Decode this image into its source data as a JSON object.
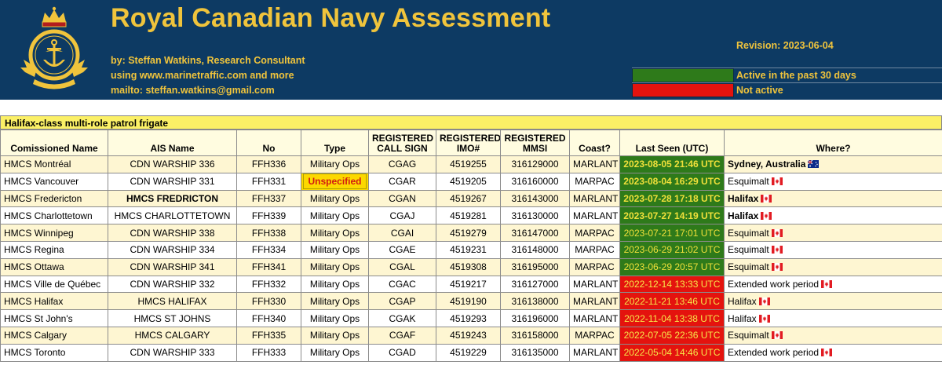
{
  "header": {
    "title": "Royal Canadian Navy Assessment",
    "byline": "by: Steffan Watkins, Research Consultant",
    "source": "using www.marinetraffic.com and more",
    "mailto": "mailto: steffan.watkins@gmail.com",
    "revision": "Revision: 2023-06-04",
    "legend": [
      {
        "color": "#2e7a1a",
        "label": "Active in the past 30 days"
      },
      {
        "color": "#e4130e",
        "label": "Not active"
      }
    ]
  },
  "section": {
    "title": "Halifax-class multi-role patrol frigate",
    "columns": [
      [
        "Comissioned Name"
      ],
      [
        "AIS Name"
      ],
      [
        "No"
      ],
      [
        "Type"
      ],
      [
        "REGISTERED",
        "CALL SIGN"
      ],
      [
        "REGISTERED",
        "IMO#"
      ],
      [
        "REGISTERED",
        "MMSI"
      ],
      [
        "Coast?"
      ],
      [
        "Last Seen (UTC)"
      ],
      [
        "Where?"
      ]
    ],
    "rows": [
      {
        "name": "HMCS Montréal",
        "ais": "CDN WARSHIP 336",
        "no": "FFH336",
        "type": "Military Ops",
        "call": "CGAG",
        "imo": "4519255",
        "mmsi": "316129000",
        "coast": "MARLANT",
        "seen": "2023-08-05 21:46 UTC",
        "status": "active",
        "where": "Sydney, Australia",
        "flag": "au-flag",
        "where_bold": true,
        "seen_bold": true
      },
      {
        "name": "HMCS Vancouver",
        "ais": "CDN WARSHIP 331",
        "no": "FFH331",
        "type": "Unspecified",
        "call": "CGAR",
        "imo": "4519205",
        "mmsi": "316160000",
        "coast": "MARPAC",
        "seen": "2023-08-04 16:29 UTC",
        "status": "active",
        "where": "Esquimalt",
        "flag": "ca-flag",
        "seen_bold": true
      },
      {
        "name": "HMCS Fredericton",
        "ais": "HMCS FREDRICTON",
        "no": "FFH337",
        "type": "Military Ops",
        "call": "CGAN",
        "imo": "4519267",
        "mmsi": "316143000",
        "coast": "MARLANT",
        "seen": "2023-07-28 17:18 UTC",
        "status": "active",
        "where": "Halifax",
        "flag": "ca-flag",
        "where_bold": true,
        "ais_bold": true,
        "seen_bold": true
      },
      {
        "name": "HMCS Charlottetown",
        "ais": "HMCS CHARLOTTETOWN",
        "no": "FFH339",
        "type": "Military Ops",
        "call": "CGAJ",
        "imo": "4519281",
        "mmsi": "316130000",
        "coast": "MARLANT",
        "seen": "2023-07-27 14:19 UTC",
        "status": "active",
        "where": "Halifax",
        "flag": "ca-flag",
        "where_bold": true,
        "seen_bold": true
      },
      {
        "name": "HMCS Winnipeg",
        "ais": "CDN WARSHIP 338",
        "no": "FFH338",
        "type": "Military Ops",
        "call": "CGAI",
        "imo": "4519279",
        "mmsi": "316147000",
        "coast": "MARPAC",
        "seen": "2023-07-21 17:01 UTC",
        "status": "active",
        "where": "Esquimalt",
        "flag": "ca-flag"
      },
      {
        "name": "HMCS Regina",
        "ais": "CDN WARSHIP 334",
        "no": "FFH334",
        "type": "Military Ops",
        "call": "CGAE",
        "imo": "4519231",
        "mmsi": "316148000",
        "coast": "MARPAC",
        "seen": "2023-06-29 21:02 UTC",
        "status": "active",
        "where": "Esquimalt",
        "flag": "ca-flag"
      },
      {
        "name": "HMCS Ottawa",
        "ais": "CDN WARSHIP 341",
        "no": "FFH341",
        "type": "Military Ops",
        "call": "CGAL",
        "imo": "4519308",
        "mmsi": "316195000",
        "coast": "MARPAC",
        "seen": "2023-06-29 20:57 UTC",
        "status": "active",
        "where": "Esquimalt",
        "flag": "ca-flag"
      },
      {
        "name": "HMCS Ville de Québec",
        "ais": "CDN WARSHIP 332",
        "no": "FFH332",
        "type": "Military Ops",
        "call": "CGAC",
        "imo": "4519217",
        "mmsi": "316127000",
        "coast": "MARLANT",
        "seen": "2022-12-14 13:33 UTC",
        "status": "inactive",
        "where": "Extended work period",
        "flag": "ca-flag"
      },
      {
        "name": "HMCS Halifax",
        "ais": "HMCS HALIFAX",
        "no": "FFH330",
        "type": "Military Ops",
        "call": "CGAP",
        "imo": "4519190",
        "mmsi": "316138000",
        "coast": "MARLANT",
        "seen": "2022-11-21 13:46 UTC",
        "status": "inactive",
        "where": "Halifax",
        "flag": "ca-flag"
      },
      {
        "name": "HMCS St John's",
        "ais": "HMCS ST JOHNS",
        "no": "FFH340",
        "type": "Military Ops",
        "call": "CGAK",
        "imo": "4519293",
        "mmsi": "316196000",
        "coast": "MARLANT",
        "seen": "2022-11-04 13:38 UTC",
        "status": "inactive",
        "where": "Halifax",
        "flag": "ca-flag"
      },
      {
        "name": "HMCS Calgary",
        "ais": "HMCS CALGARY",
        "no": "FFH335",
        "type": "Military Ops",
        "call": "CGAF",
        "imo": "4519243",
        "mmsi": "316158000",
        "coast": "MARPAC",
        "seen": "2022-07-05 22:36 UTC",
        "status": "inactive",
        "where": "Esquimalt",
        "flag": "ca-flag"
      },
      {
        "name": "HMCS Toronto",
        "ais": "CDN WARSHIP 333",
        "no": "FFH333",
        "type": "Military Ops",
        "call": "CGAD",
        "imo": "4519229",
        "mmsi": "316135000",
        "coast": "MARLANT",
        "seen": "2022-05-04 14:46 UTC",
        "status": "inactive",
        "where": "Extended work period",
        "flag": "ca-flag"
      }
    ]
  }
}
